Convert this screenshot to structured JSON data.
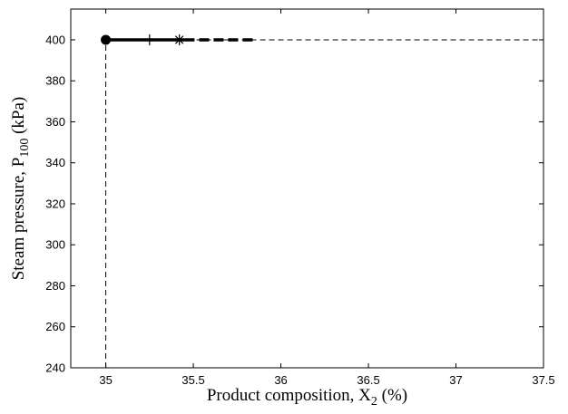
{
  "chart_data": {
    "type": "line",
    "title": "",
    "xlabel": {
      "main": "Product composition, X",
      "sub": "2",
      "suffix": " (%)"
    },
    "ylabel": {
      "main": "Steam pressure, P",
      "sub": "100",
      "suffix": " (kPa)"
    },
    "xlim": [
      34.8,
      37.5
    ],
    "ylim": [
      240,
      415
    ],
    "xticks": [
      35,
      35.5,
      36,
      36.5,
      37,
      37.5
    ],
    "yticks": [
      240,
      260,
      280,
      300,
      320,
      340,
      360,
      380,
      400
    ],
    "xtick_labels": [
      "35",
      "35.5",
      "36",
      "36.5",
      "37",
      "37.5"
    ],
    "ytick_labels": [
      "240",
      "260",
      "280",
      "300",
      "320",
      "340",
      "360",
      "380",
      "400"
    ],
    "grid": false,
    "series": [
      {
        "style": "dashed-reference",
        "x": [
          35,
          35
        ],
        "y": [
          240,
          400
        ]
      },
      {
        "style": "dashed-reference",
        "x": [
          35,
          37.5
        ],
        "y": [
          400,
          400
        ]
      },
      {
        "style": "solid-thick",
        "x": [
          35,
          35.45
        ],
        "y": [
          400,
          400
        ]
      },
      {
        "style": "dashed-thick",
        "x": [
          35.45,
          35.86
        ],
        "y": [
          400,
          400
        ]
      }
    ],
    "markers": [
      {
        "shape": "filled-circle",
        "x": 35,
        "y": 400
      },
      {
        "shape": "plus",
        "x": 35.25,
        "y": 400
      },
      {
        "shape": "asterisk",
        "x": 35.42,
        "y": 400
      }
    ]
  }
}
